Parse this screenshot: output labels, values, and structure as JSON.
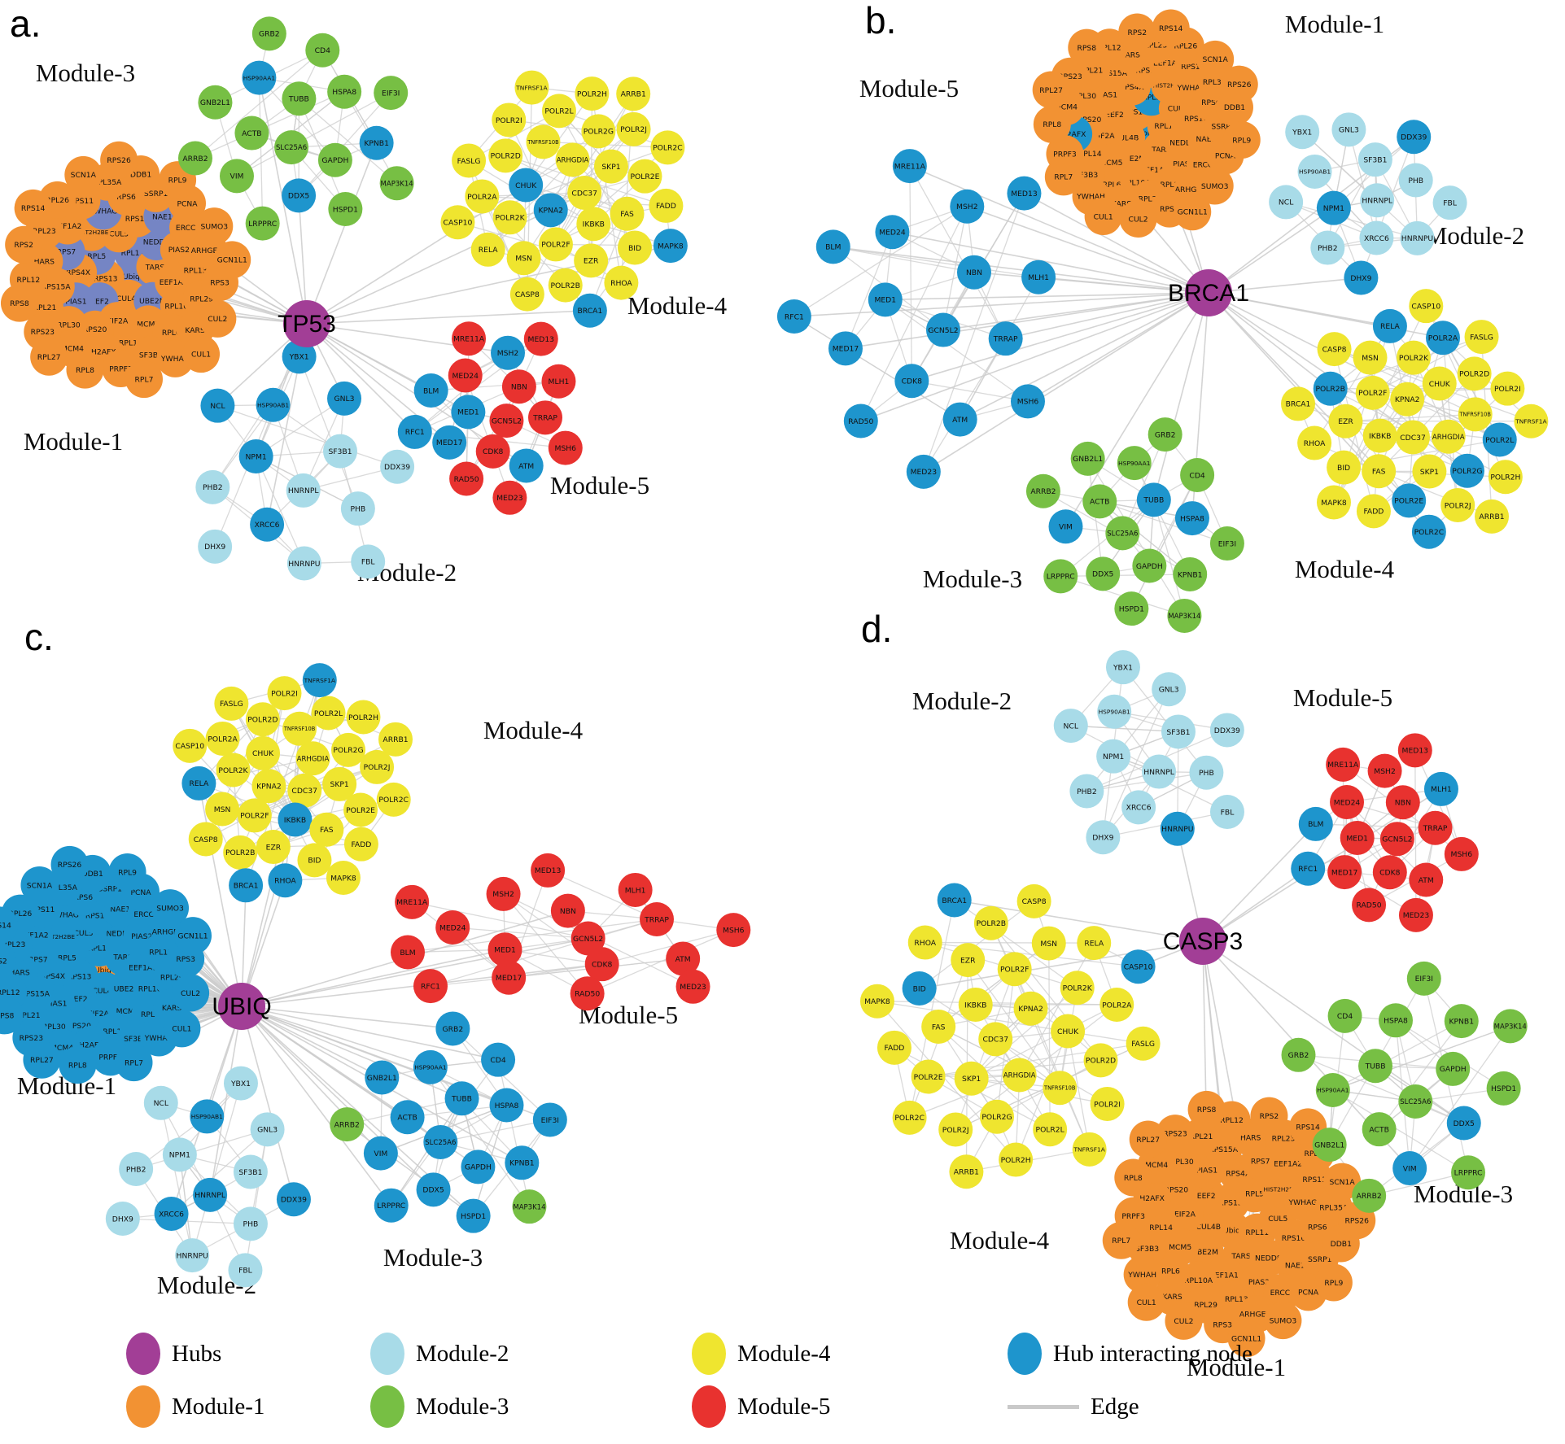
{
  "figure": {
    "description": "Hub gene interaction networks with five modules per hub"
  },
  "colors": {
    "hub": "#A23E96",
    "m1": "#F29233",
    "m2": "#A8DBE8",
    "m3": "#77BF44",
    "m4": "#EFE52F",
    "m5": "#E8322F",
    "interacting": "#1E95CD",
    "interacting_slate": "#7585C4",
    "edge": "#CDCDCD"
  },
  "gene_sets": {
    "module1": [
      "Ubiq",
      "RPS13",
      "RPL11",
      "CUL4B",
      "RPL5",
      "TARS",
      "EEF2",
      "CUL5",
      "UBE2M",
      "RPS4X",
      "NEDD8",
      "EIF2A",
      "HIST2H2BE",
      "EEF1A1",
      "PIAS1",
      "RPS16",
      "MCM5",
      "RPS7",
      "PIAS2",
      "RPS20",
      "YWHAG",
      "RPL10A",
      "RPS15A",
      "NAE1",
      "RPL14",
      "EEF1A2",
      "RPL13",
      "RPL30",
      "RPS6",
      "RPL6",
      "HARS",
      "ERCC4",
      "H2AFX",
      "RPS11",
      "RPL29",
      "RPL21",
      "SSRP1",
      "SF3B3",
      "RPL23",
      "ARHGEF4",
      "MCM4",
      "RPL35A",
      "KARS",
      "RPL12",
      "PCNA",
      "PRPF3",
      "RPL26",
      "RPS3",
      "RPS23",
      "DDB1",
      "YWHAH",
      "RPS2",
      "SUMO3",
      "RPL8",
      "SCN1A",
      "CUL2",
      "RPS8",
      "RPL9",
      "RPL7",
      "RPS14",
      "GCN1L1",
      "RPL27",
      "RPS26",
      "CUL1"
    ],
    "module2": [
      "HNRNPL",
      "NPM1",
      "SF3B1",
      "XRCC6",
      "HSP90AB1",
      "PHB",
      "PHB2",
      "GNL3",
      "HNRNPU",
      "NCL",
      "DDX39",
      "DHX9",
      "YBX1",
      "FBL"
    ],
    "module3": [
      "SLC25A6",
      "TUBB",
      "GAPDH",
      "ACTB",
      "HSPA8",
      "DDX5",
      "HSP90AA1",
      "KPNB1",
      "VIM",
      "CD4",
      "HSPD1",
      "GNB2L1",
      "EIF3I",
      "LRPPRC",
      "GRB2",
      "MAP3K14",
      "ARRB2"
    ],
    "module4": [
      "CDC37",
      "KPNA2",
      "ARHGDIA",
      "IKBKB",
      "CHUK",
      "SKP1",
      "POLR2F",
      "TNFRSF10B",
      "FAS",
      "POLR2K",
      "POLR2G",
      "EZR",
      "POLR2D",
      "POLR2E",
      "MSN",
      "POLR2L",
      "BID",
      "POLR2A",
      "POLR2J",
      "POLR2B",
      "POLR2I",
      "FADD",
      "RELA",
      "POLR2H",
      "RHOA",
      "FASLG",
      "POLR2C",
      "CASP8",
      "TNFRSF1A",
      "MAPK8",
      "CASP10",
      "ARRB1",
      "BRCA1"
    ],
    "module5": [
      "GCN5L2",
      "MED1",
      "NBN",
      "CDK8",
      "MED24",
      "TRRAP",
      "MED17",
      "MSH2",
      "ATM",
      "BLM",
      "MLH1",
      "RAD50",
      "MRE11A",
      "MSH6",
      "RFC1",
      "MED13",
      "MED23"
    ]
  },
  "panels": [
    {
      "id": "a",
      "letter": "a.",
      "hub": {
        "label": "TP53"
      },
      "modules": [
        {
          "key": "m1",
          "name": "Module-1",
          "set": "module1",
          "base": "m1",
          "alt": "interacting_slate",
          "alt_nodes": [
            "Ubiq",
            "RPL11",
            "RPL5",
            "EEF2",
            "UBE2M",
            "NEDD8",
            "PIAS1",
            "RPS7",
            "YWHAG",
            "NAE1"
          ]
        },
        {
          "key": "m2",
          "name": "Module-2",
          "set": "module2",
          "base": "m2",
          "alt": "interacting",
          "alt_nodes": [
            "XRCC6",
            "NPM1",
            "HSP90AB1",
            "GNL3",
            "NCL",
            "YBX1"
          ]
        },
        {
          "key": "m3",
          "name": "Module-3",
          "set": "module3",
          "base": "m3",
          "alt": "interacting",
          "alt_nodes": [
            "DDX5",
            "KPNB1",
            "HSP90AA1"
          ]
        },
        {
          "key": "m4",
          "name": "Module-4",
          "set": "module4",
          "base": "m4",
          "alt": "interacting",
          "alt_nodes": [
            "KPNA2",
            "CHUK",
            "MAPK8",
            "BRCA1"
          ]
        },
        {
          "key": "m5",
          "name": "Module-5",
          "set": "module5",
          "base": "m5",
          "alt": "interacting",
          "alt_nodes": [
            "MSH2",
            "MED17",
            "MED1",
            "RFC1",
            "BLM",
            "ATM"
          ]
        }
      ]
    },
    {
      "id": "b",
      "letter": "b.",
      "hub": {
        "label": "BRCA1"
      },
      "modules": [
        {
          "key": "m1",
          "name": "Module-1",
          "set": "module1",
          "base": "m1",
          "alt": "interacting",
          "alt_nodes": [
            "H2AFX",
            "Ubiq",
            "RPL5"
          ]
        },
        {
          "key": "m2",
          "name": "Module-2",
          "set": "module2",
          "base": "m2",
          "alt": "interacting",
          "alt_nodes": [
            "NPM1",
            "DHX9",
            "DDX39"
          ]
        },
        {
          "key": "m3",
          "name": "Module-3",
          "set": "module3",
          "base": "m3",
          "alt": "interacting",
          "alt_nodes": [
            "TUBB",
            "HSPA8",
            "VIM"
          ]
        },
        {
          "key": "m4",
          "name": "Module-4",
          "set": "module4",
          "base": "m4",
          "alt": "interacting",
          "alt_nodes": [
            "POLR2A",
            "POLR2B",
            "POLR2C",
            "POLR2L",
            "POLR2E",
            "POLR2G",
            "RELA"
          ]
        },
        {
          "key": "m5",
          "name": "Module-5",
          "set": "module5",
          "base": "interacting",
          "alt": "interacting",
          "alt_nodes": []
        }
      ]
    },
    {
      "id": "c",
      "letter": "c.",
      "hub": {
        "label": "UBIQ"
      },
      "modules": [
        {
          "key": "m1",
          "name": "Module-1",
          "set": "module1",
          "base": "interacting",
          "alt": "m1",
          "alt_nodes": [
            "Ubiq"
          ]
        },
        {
          "key": "m2",
          "name": "Module-2",
          "set": "module2",
          "base": "m2",
          "alt": "interacting",
          "alt_nodes": [
            "HSP90AB1",
            "HNRNPL",
            "XRCC6",
            "DDX39"
          ]
        },
        {
          "key": "m3",
          "name": "Module-3",
          "set": "module3",
          "base": "interacting",
          "alt": "m3",
          "alt_nodes": [
            "ARRB2",
            "MAP3K14"
          ]
        },
        {
          "key": "m4",
          "name": "Module-4",
          "set": "module4",
          "base": "m4",
          "alt": "interacting",
          "alt_nodes": [
            "BRCA1",
            "IKBKB",
            "RELA",
            "RHOA",
            "TNFRSF1A"
          ]
        },
        {
          "key": "m5",
          "name": "Module-5",
          "set": "module5",
          "base": "m5",
          "alt": "interacting",
          "alt_nodes": []
        }
      ]
    },
    {
      "id": "d",
      "letter": "d.",
      "hub": {
        "label": "CASP3"
      },
      "modules": [
        {
          "key": "m1",
          "name": "Module-1",
          "set": "module1",
          "base": "m1",
          "alt": "interacting",
          "alt_nodes": []
        },
        {
          "key": "m2",
          "name": "Module-2",
          "set": "module2",
          "base": "m2",
          "alt": "interacting",
          "alt_nodes": [
            "HNRNPU"
          ]
        },
        {
          "key": "m3",
          "name": "Module-3",
          "set": "module3",
          "base": "m3",
          "alt": "interacting",
          "alt_nodes": [
            "VIM",
            "DDX5"
          ]
        },
        {
          "key": "m4",
          "name": "Module-4",
          "set": "module4",
          "base": "m4",
          "alt": "interacting",
          "alt_nodes": [
            "BRCA1",
            "CASP10",
            "BID"
          ]
        },
        {
          "key": "m5",
          "name": "Module-5",
          "set": "module5",
          "base": "m5",
          "alt": "interacting",
          "alt_nodes": [
            "RFC1",
            "MLH1",
            "BLM"
          ]
        }
      ]
    }
  ],
  "legend": {
    "items": [
      {
        "color_key": "hub",
        "label": "Hubs"
      },
      {
        "color_key": "m2",
        "label": "Module-2"
      },
      {
        "color_key": "m4",
        "label": "Module-4"
      },
      {
        "color_key": "interacting",
        "label": "Hub interacting node"
      },
      {
        "color_key": "m1",
        "label": "Module-1"
      },
      {
        "color_key": "m3",
        "label": "Module-3"
      },
      {
        "color_key": "m5",
        "label": "Module-5"
      },
      {
        "color_key": "edge",
        "label": "Edge"
      }
    ]
  }
}
